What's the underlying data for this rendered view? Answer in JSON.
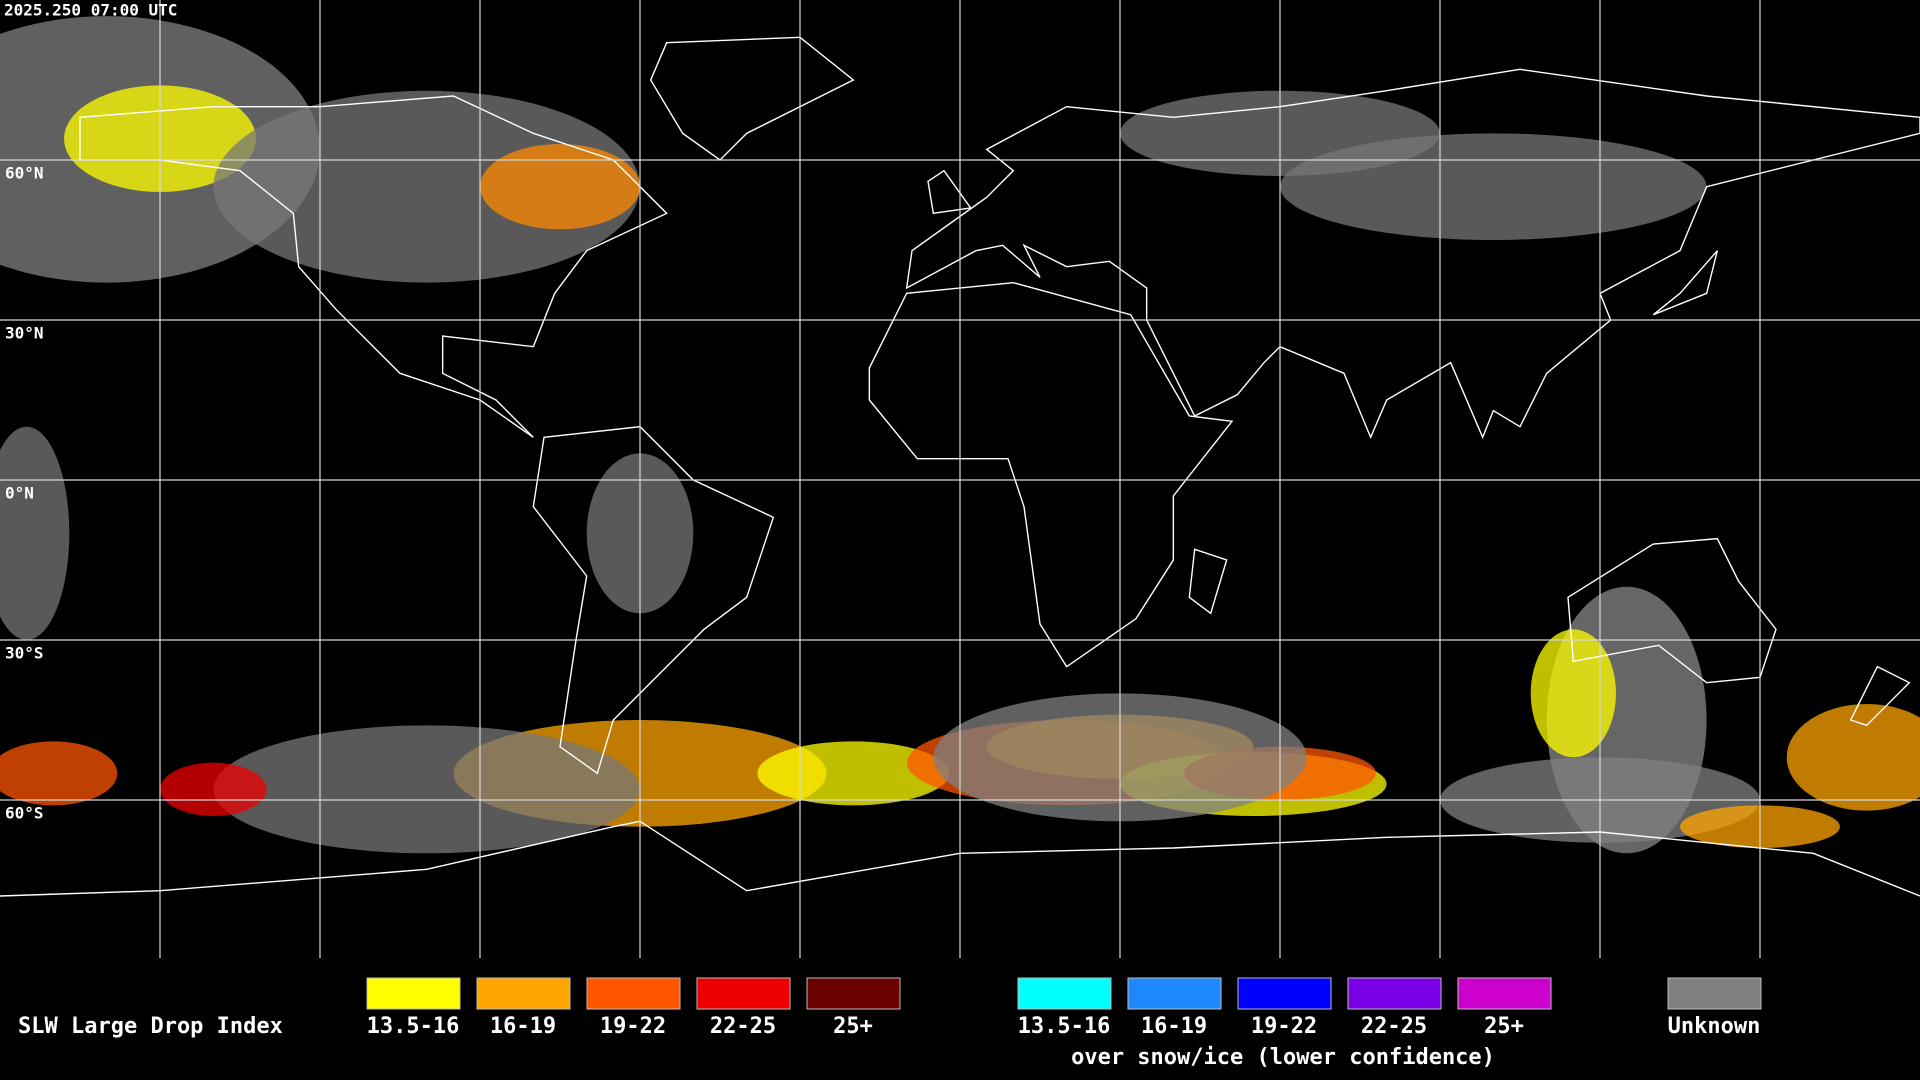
{
  "timestamp": "2025.250 07:00 UTC",
  "grid_labels": [
    "60°N",
    "30°N",
    "0°N",
    "30°S",
    "60°S"
  ],
  "legend": {
    "title": "SLW Large Drop Index",
    "items": [
      {
        "label": "13.5-16",
        "color": "#ffff00"
      },
      {
        "label": "16-19",
        "color": "#ffa500"
      },
      {
        "label": "19-22",
        "color": "#ff5500"
      },
      {
        "label": "22-25",
        "color": "#ee0000"
      },
      {
        "label": "25+",
        "color": "#6b0000"
      }
    ],
    "snow_items": [
      {
        "label": "13.5-16",
        "color": "#00ffff"
      },
      {
        "label": "16-19",
        "color": "#1e88ff"
      },
      {
        "label": "19-22",
        "color": "#0000ff"
      },
      {
        "label": "22-25",
        "color": "#7a00e6"
      },
      {
        "label": "25+",
        "color": "#cc00cc"
      }
    ],
    "snow_caption": "over snow/ice (lower confidence)",
    "unknown": {
      "label": "Unknown",
      "color": "#808080"
    }
  }
}
